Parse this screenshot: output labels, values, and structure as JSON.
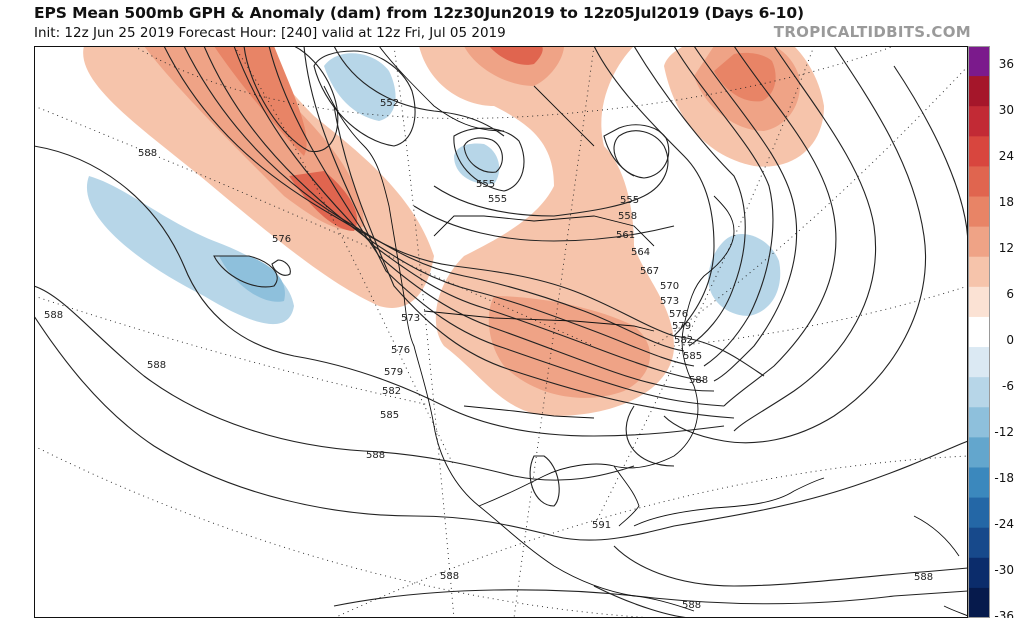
{
  "header": {
    "title": "EPS Mean 500mb GPH & Anomaly (dam) from 12z30Jun2019 to 12z05Jul2019 (Days 6-10)",
    "subtitle": "Init: 12z Jun 25 2019   Forecast Hour: [240]   valid at 12z Fri, Jul 05 2019",
    "brand": "TROPICALTIDBITS.COM"
  },
  "colorbar": {
    "labels": [
      "36",
      "30",
      "24",
      "18",
      "12",
      "6",
      "0",
      "-6",
      "-12",
      "-18",
      "-24",
      "-30",
      "-36"
    ],
    "colors_top_to_bottom": [
      "#7b1a8c",
      "#a5162a",
      "#c22a35",
      "#d8463e",
      "#e0654f",
      "#e88466",
      "#efa386",
      "#f6c4ab",
      "#fbe2d4",
      "#ffffff",
      "#dbe9f3",
      "#b7d6e8",
      "#8ec0dc",
      "#63a6cd",
      "#3b88bd",
      "#2467a6",
      "#17498b",
      "#0b2c6b",
      "#061a4c"
    ]
  },
  "map": {
    "contour_labels": [
      "588",
      "576",
      "588",
      "588",
      "588",
      "588",
      "591",
      "588",
      "588",
      "573",
      "576",
      "579",
      "582",
      "585",
      "552",
      "555",
      "555",
      "555",
      "558",
      "561",
      "564",
      "567",
      "570",
      "573",
      "576",
      "579",
      "582",
      "585",
      "588"
    ]
  }
}
